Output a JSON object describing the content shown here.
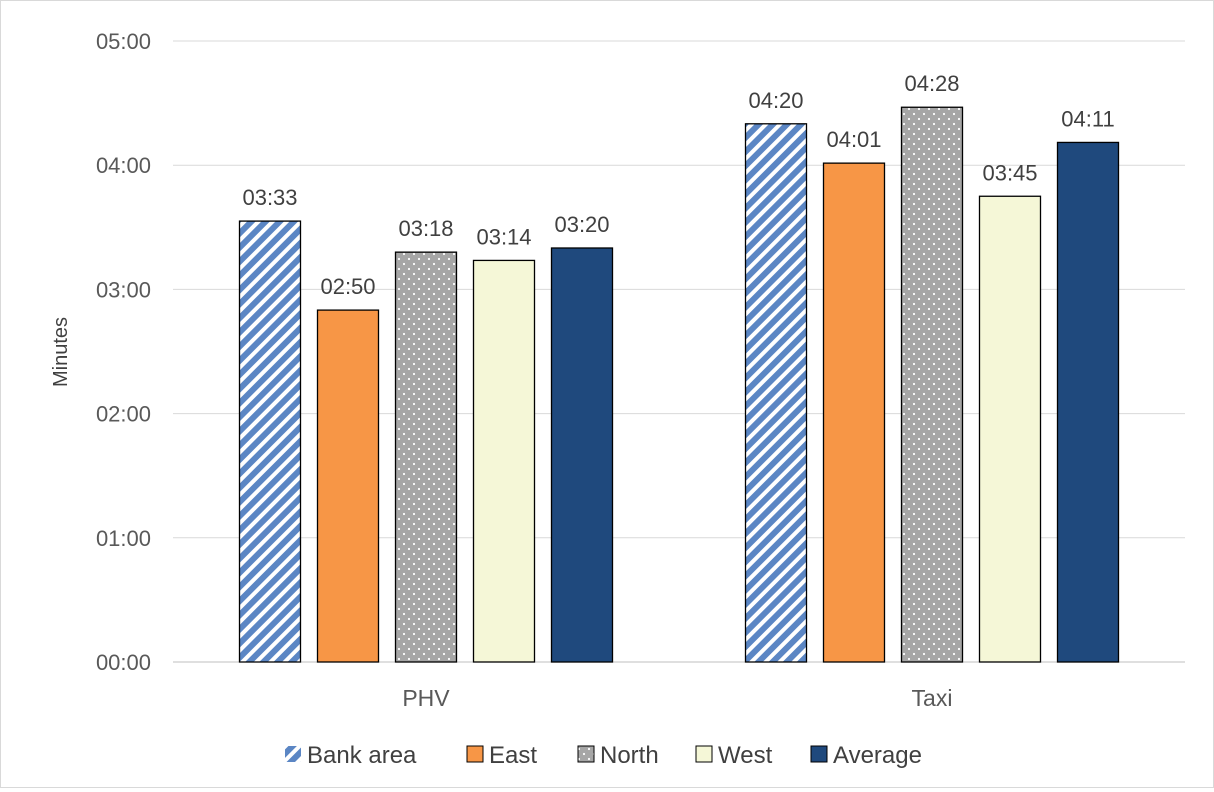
{
  "chart_data": {
    "type": "bar",
    "categories": [
      "PHV",
      "Taxi"
    ],
    "ylabel": "Minutes",
    "ylim": [
      0,
      300
    ],
    "yticks": [
      {
        "value": 0,
        "label": "00:00"
      },
      {
        "value": 60,
        "label": "01:00"
      },
      {
        "value": 120,
        "label": "02:00"
      },
      {
        "value": 180,
        "label": "03:00"
      },
      {
        "value": 240,
        "label": "04:00"
      },
      {
        "value": 300,
        "label": "05:00"
      }
    ],
    "series": [
      {
        "name": "Bank area",
        "values": [
          213,
          260
        ],
        "labels": [
          "03:33",
          "04:20"
        ],
        "pattern": "stripes",
        "color": "#5b86c4"
      },
      {
        "name": "East",
        "values": [
          170,
          241
        ],
        "labels": [
          "02:50",
          "04:01"
        ],
        "pattern": "solid",
        "color": "#f79646"
      },
      {
        "name": "North",
        "values": [
          198,
          268
        ],
        "labels": [
          "03:18",
          "04:28"
        ],
        "pattern": "dots",
        "color": "#a6a6a6"
      },
      {
        "name": "West",
        "values": [
          194,
          225
        ],
        "labels": [
          "03:14",
          "03:45"
        ],
        "pattern": "solid",
        "color": "#f5f7d7"
      },
      {
        "name": "Average",
        "values": [
          200,
          251
        ],
        "labels": [
          "03:20",
          "04:11"
        ],
        "pattern": "solid",
        "color": "#1f497d"
      }
    ],
    "grid": true,
    "legend": "bottom"
  }
}
